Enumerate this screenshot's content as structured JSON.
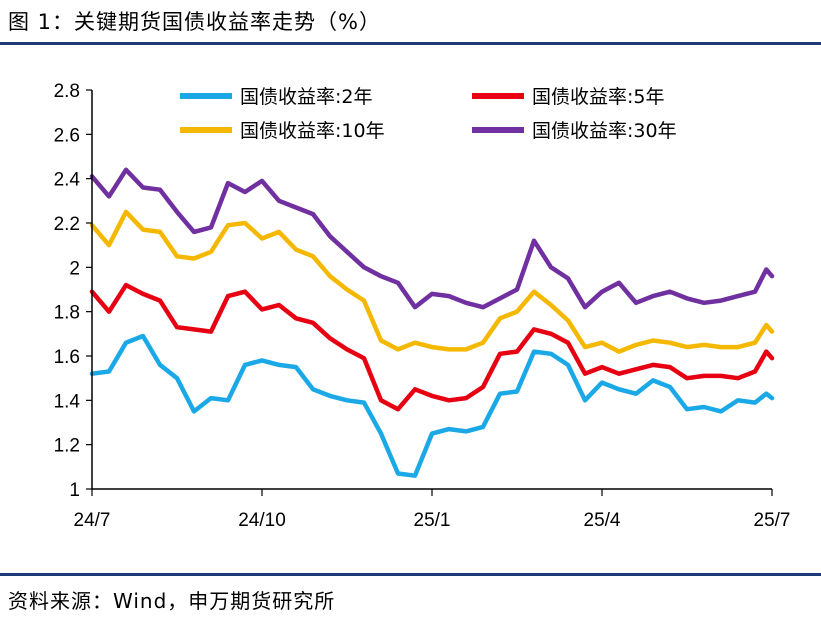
{
  "header": {
    "title": "图 1：关键期货国债收益率走势（%）"
  },
  "footer": {
    "source": "资料来源：Wind，申万期货研究所"
  },
  "chart_data": {
    "type": "line",
    "title": "",
    "xlabel": "",
    "ylabel": "",
    "ylim": [
      1,
      2.8
    ],
    "yticks": [
      "1",
      "1.2",
      "1.4",
      "1.6",
      "1.8",
      "2",
      "2.2",
      "2.4",
      "2.6",
      "2.8"
    ],
    "xticks": [
      "24/7",
      "24/10",
      "25/1",
      "25/4",
      "25/7"
    ],
    "xtick_positions": [
      0,
      3,
      6,
      9,
      12
    ],
    "xlim": [
      0,
      12
    ],
    "grid": false,
    "legend_position": "top",
    "series": [
      {
        "name": "国债收益率:2年",
        "color": "#1aa9e6",
        "x": [
          0,
          0.3,
          0.6,
          0.9,
          1.2,
          1.5,
          1.8,
          2.1,
          2.4,
          2.7,
          3.0,
          3.3,
          3.6,
          3.9,
          4.2,
          4.5,
          4.8,
          5.1,
          5.4,
          5.7,
          6.0,
          6.3,
          6.6,
          6.9,
          7.2,
          7.5,
          7.8,
          8.1,
          8.4,
          8.7,
          9.0,
          9.3,
          9.6,
          9.9,
          10.2,
          10.5,
          10.8,
          11.1,
          11.4,
          11.7,
          11.9,
          12.0
        ],
        "values": [
          1.52,
          1.53,
          1.66,
          1.69,
          1.56,
          1.5,
          1.35,
          1.41,
          1.4,
          1.56,
          1.58,
          1.56,
          1.55,
          1.45,
          1.42,
          1.4,
          1.39,
          1.25,
          1.07,
          1.06,
          1.25,
          1.27,
          1.26,
          1.28,
          1.43,
          1.44,
          1.62,
          1.61,
          1.56,
          1.4,
          1.48,
          1.45,
          1.43,
          1.49,
          1.46,
          1.36,
          1.37,
          1.35,
          1.4,
          1.39,
          1.43,
          1.41
        ]
      },
      {
        "name": "国债收益率:5年",
        "color": "#e60012",
        "x": [
          0,
          0.3,
          0.6,
          0.9,
          1.2,
          1.5,
          1.8,
          2.1,
          2.4,
          2.7,
          3.0,
          3.3,
          3.6,
          3.9,
          4.2,
          4.5,
          4.8,
          5.1,
          5.4,
          5.7,
          6.0,
          6.3,
          6.6,
          6.9,
          7.2,
          7.5,
          7.8,
          8.1,
          8.4,
          8.7,
          9.0,
          9.3,
          9.6,
          9.9,
          10.2,
          10.5,
          10.8,
          11.1,
          11.4,
          11.7,
          11.9,
          12.0
        ],
        "values": [
          1.89,
          1.8,
          1.92,
          1.88,
          1.85,
          1.73,
          1.72,
          1.71,
          1.87,
          1.89,
          1.81,
          1.83,
          1.77,
          1.75,
          1.68,
          1.63,
          1.59,
          1.4,
          1.36,
          1.45,
          1.42,
          1.4,
          1.41,
          1.46,
          1.61,
          1.62,
          1.72,
          1.7,
          1.66,
          1.52,
          1.55,
          1.52,
          1.54,
          1.56,
          1.55,
          1.5,
          1.51,
          1.51,
          1.5,
          1.53,
          1.62,
          1.59
        ]
      },
      {
        "name": "国债收益率:10年",
        "color": "#f5b800",
        "x": [
          0,
          0.3,
          0.6,
          0.9,
          1.2,
          1.5,
          1.8,
          2.1,
          2.4,
          2.7,
          3.0,
          3.3,
          3.6,
          3.9,
          4.2,
          4.5,
          4.8,
          5.1,
          5.4,
          5.7,
          6.0,
          6.3,
          6.6,
          6.9,
          7.2,
          7.5,
          7.8,
          8.1,
          8.4,
          8.7,
          9.0,
          9.3,
          9.6,
          9.9,
          10.2,
          10.5,
          10.8,
          11.1,
          11.4,
          11.7,
          11.9,
          12.0
        ],
        "values": [
          2.19,
          2.1,
          2.25,
          2.17,
          2.16,
          2.05,
          2.04,
          2.07,
          2.19,
          2.2,
          2.13,
          2.16,
          2.08,
          2.05,
          1.96,
          1.9,
          1.85,
          1.67,
          1.63,
          1.66,
          1.64,
          1.63,
          1.63,
          1.66,
          1.77,
          1.8,
          1.89,
          1.83,
          1.76,
          1.64,
          1.66,
          1.62,
          1.65,
          1.67,
          1.66,
          1.64,
          1.65,
          1.64,
          1.64,
          1.66,
          1.74,
          1.71
        ]
      },
      {
        "name": "国债收益率:30年",
        "color": "#7030a0",
        "x": [
          0,
          0.3,
          0.6,
          0.9,
          1.2,
          1.5,
          1.8,
          2.1,
          2.4,
          2.7,
          3.0,
          3.3,
          3.6,
          3.9,
          4.2,
          4.5,
          4.8,
          5.1,
          5.4,
          5.7,
          6.0,
          6.3,
          6.6,
          6.9,
          7.2,
          7.5,
          7.8,
          8.1,
          8.4,
          8.7,
          9.0,
          9.3,
          9.6,
          9.9,
          10.2,
          10.5,
          10.8,
          11.1,
          11.4,
          11.7,
          11.9,
          12.0
        ],
        "values": [
          2.41,
          2.32,
          2.44,
          2.36,
          2.35,
          2.25,
          2.16,
          2.18,
          2.38,
          2.34,
          2.39,
          2.3,
          2.27,
          2.24,
          2.14,
          2.07,
          2.0,
          1.96,
          1.93,
          1.82,
          1.88,
          1.87,
          1.84,
          1.82,
          1.86,
          1.9,
          2.12,
          2.0,
          1.95,
          1.82,
          1.89,
          1.93,
          1.84,
          1.87,
          1.89,
          1.86,
          1.84,
          1.85,
          1.87,
          1.89,
          1.99,
          1.96
        ]
      }
    ]
  }
}
